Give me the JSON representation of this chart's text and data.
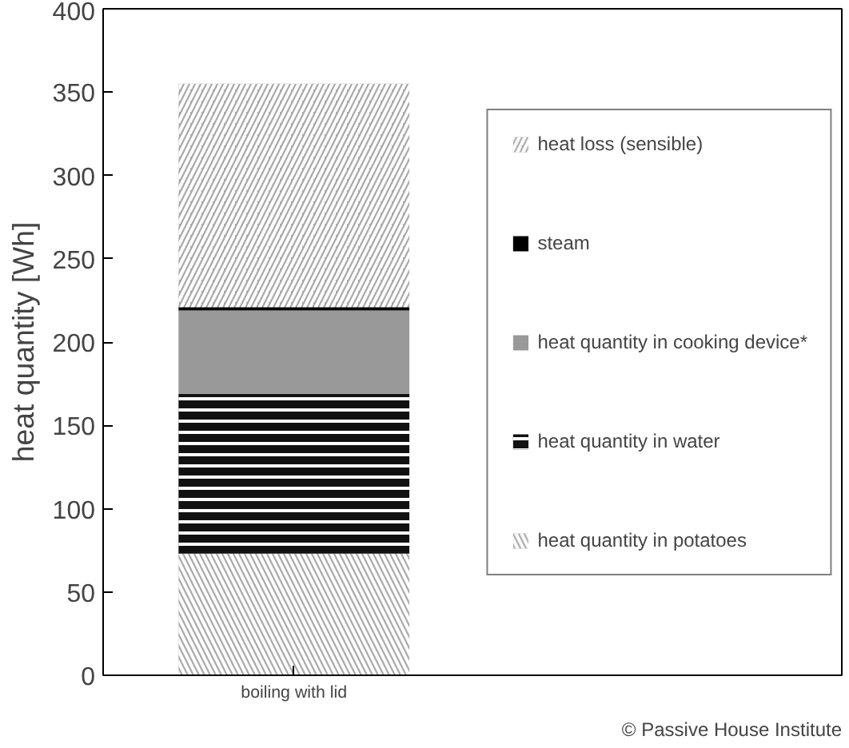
{
  "chart_data": {
    "type": "bar",
    "stacked": true,
    "categories": [
      "boiling with lid"
    ],
    "ylabel": "heat quantity [Wh]",
    "ylim": [
      0,
      400
    ],
    "yticks": [
      0,
      50,
      100,
      150,
      200,
      250,
      300,
      350,
      400
    ],
    "grid": false,
    "legend": "right",
    "annotations": [
      "© Passive House Institute"
    ],
    "series": [
      {
        "name": "heat quantity in potatoes",
        "color": "#aaaaaa",
        "values": [
          73
        ]
      },
      {
        "name": "heat quantity in water",
        "color": "#111111",
        "values": [
          96
        ]
      },
      {
        "name": "heat quantity in cooking device*",
        "color": "#999999",
        "values": [
          50
        ]
      },
      {
        "name": "steam",
        "color": "#000000",
        "values": [
          2
        ]
      },
      {
        "name": "heat loss (sensible)",
        "color": "#aaaaaa",
        "values": [
          134
        ]
      }
    ]
  }
}
